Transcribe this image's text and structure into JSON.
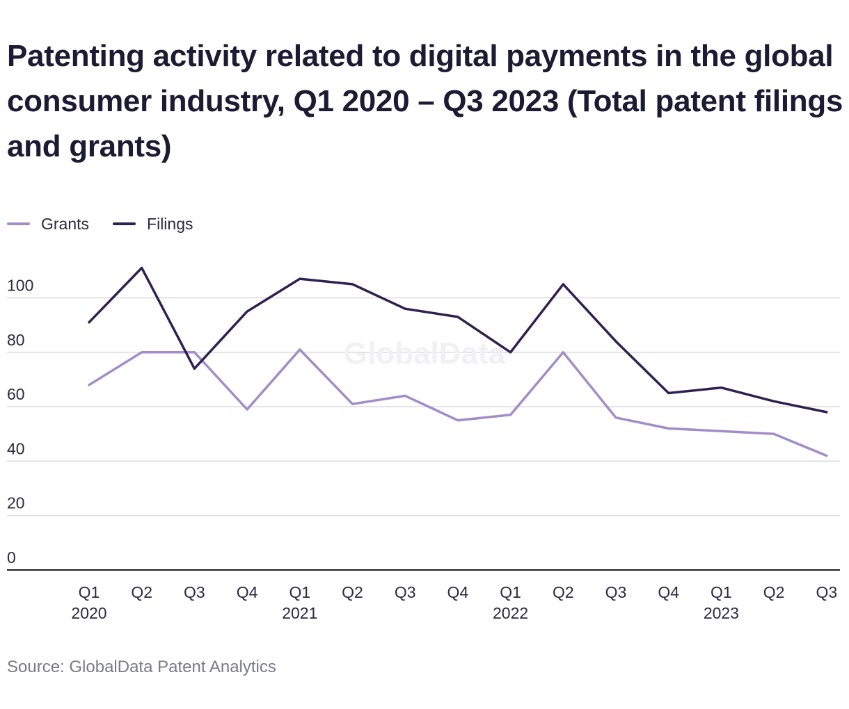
{
  "title": "Patenting activity related to digital payments in the global consumer industry, Q1 2020 – Q3 2023 (Total patent filings and grants)",
  "source": "Source: GlobalData Patent Analytics",
  "watermark": "GlobalData",
  "colors": {
    "grants": "#a18dc8",
    "filings": "#2e2150",
    "gridline": "#d9d9d9",
    "axis": "#1c1b33",
    "tick_text": "#2b2a40",
    "watermark": "#f1f0f4"
  },
  "chart_data": {
    "type": "line",
    "title": "Patenting activity related to digital payments in the global consumer industry, Q1 2020 – Q3 2023 (Total patent filings and grants)",
    "xlabel": "",
    "ylabel": "",
    "x": [
      "Q1 2020",
      "Q2 2020",
      "Q3 2020",
      "Q4 2020",
      "Q1 2021",
      "Q2 2021",
      "Q3 2021",
      "Q4 2021",
      "Q1 2022",
      "Q2 2022",
      "Q3 2022",
      "Q4 2022",
      "Q1 2023",
      "Q2 2023",
      "Q3 2023"
    ],
    "x_tick_labels": [
      {
        "quarter": "Q1",
        "year": "2020"
      },
      {
        "quarter": "Q2",
        "year": ""
      },
      {
        "quarter": "Q3",
        "year": ""
      },
      {
        "quarter": "Q4",
        "year": ""
      },
      {
        "quarter": "Q1",
        "year": "2021"
      },
      {
        "quarter": "Q2",
        "year": ""
      },
      {
        "quarter": "Q3",
        "year": ""
      },
      {
        "quarter": "Q4",
        "year": ""
      },
      {
        "quarter": "Q1",
        "year": "2022"
      },
      {
        "quarter": "Q2",
        "year": ""
      },
      {
        "quarter": "Q3",
        "year": ""
      },
      {
        "quarter": "Q4",
        "year": ""
      },
      {
        "quarter": "Q1",
        "year": "2023"
      },
      {
        "quarter": "Q2",
        "year": ""
      },
      {
        "quarter": "Q3",
        "year": ""
      }
    ],
    "series": [
      {
        "name": "Grants",
        "values": [
          68,
          80,
          80,
          59,
          81,
          61,
          64,
          55,
          57,
          80,
          56,
          52,
          51,
          50,
          42
        ]
      },
      {
        "name": "Filings",
        "values": [
          91,
          111,
          74,
          95,
          107,
          105,
          96,
          93,
          80,
          105,
          84,
          65,
          67,
          62,
          58
        ]
      }
    ],
    "yticks": [
      0,
      20,
      40,
      60,
      80,
      100
    ],
    "ylim": [
      0,
      110
    ],
    "grid": true,
    "legend_position": "top-left"
  }
}
